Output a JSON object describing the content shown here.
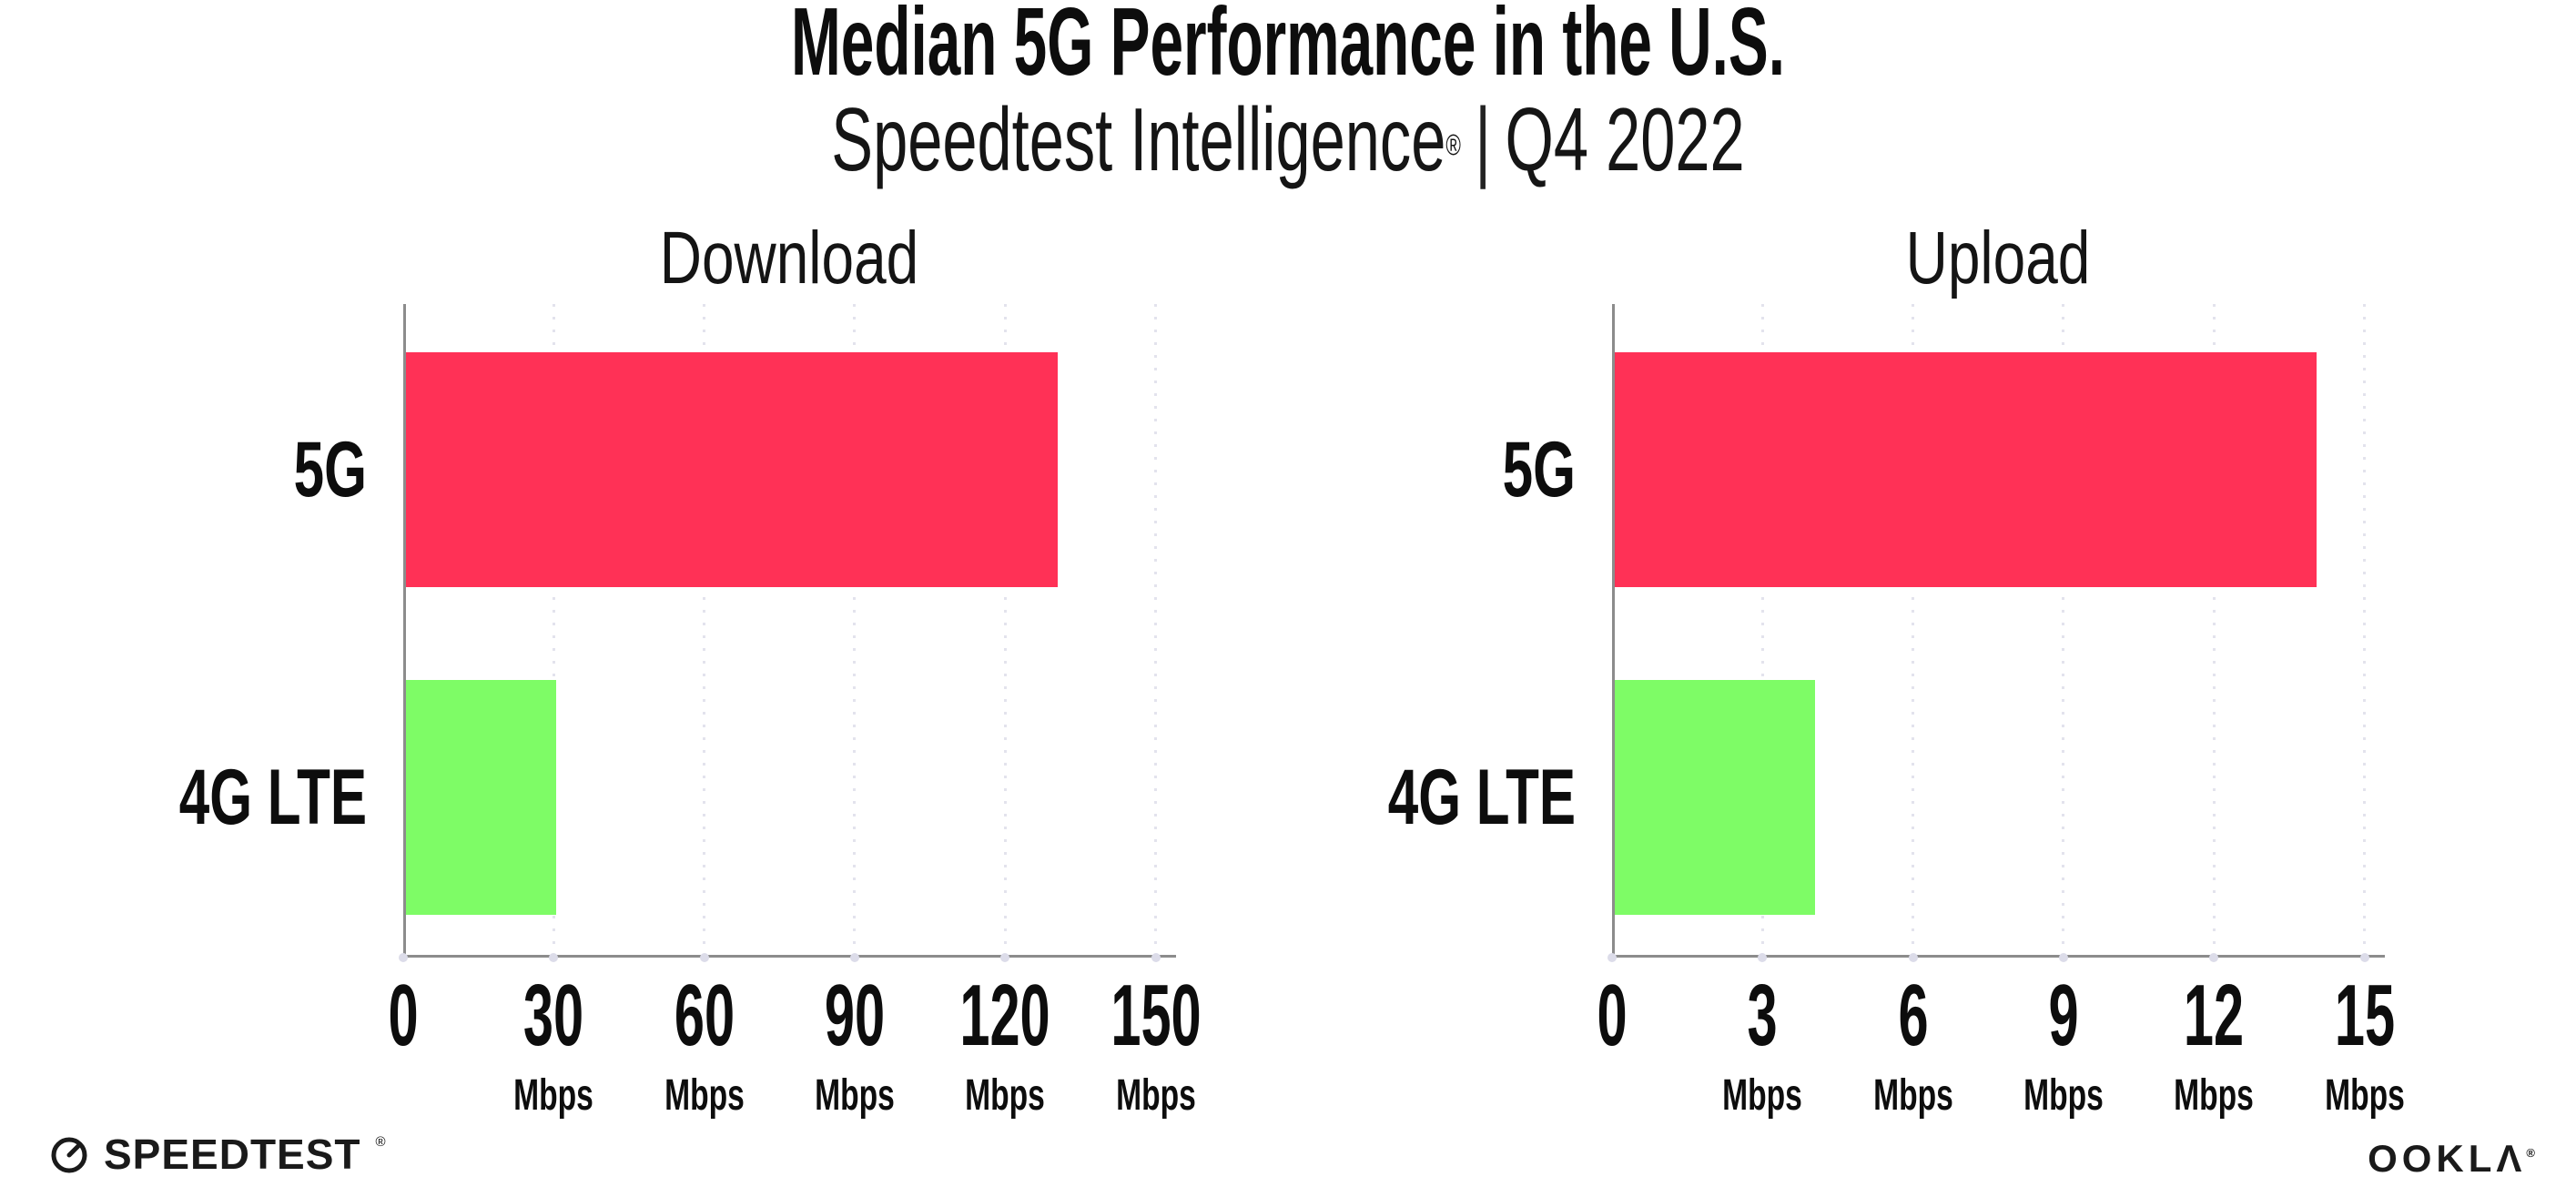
{
  "header": {
    "title": "Median 5G Performance in the U.S.",
    "subtitle_product": "Speedtest Intelligence",
    "subtitle_trademark": "®",
    "subtitle_separator": "|",
    "subtitle_period": "Q4 2022"
  },
  "chart_data": [
    {
      "type": "bar",
      "orientation": "horizontal",
      "title": "Download",
      "categories": [
        "5G",
        "4G LTE"
      ],
      "values": [
        130,
        30
      ],
      "unit": "Mbps",
      "xlim": [
        0,
        150
      ],
      "xticks": [
        0,
        30,
        60,
        90,
        120,
        150
      ],
      "grid": "vertical-dotted",
      "legend": "none",
      "bar_colors": [
        "#ff3156",
        "#7efc66"
      ]
    },
    {
      "type": "bar",
      "orientation": "horizontal",
      "title": "Upload",
      "categories": [
        "5G",
        "4G LTE"
      ],
      "values": [
        14,
        4
      ],
      "unit": "Mbps",
      "xlim": [
        0,
        15
      ],
      "xticks": [
        0,
        3,
        6,
        9,
        12,
        15
      ],
      "grid": "vertical-dotted",
      "legend": "none",
      "bar_colors": [
        "#ff3156",
        "#7efc66"
      ]
    }
  ],
  "footer": {
    "speedtest_label": "SPEEDTEST",
    "speedtest_trademark": "®",
    "ookla_label": "OOKLΛ",
    "ookla_trademark": "®"
  },
  "colors": {
    "bar_5g": "#ff3156",
    "bar_4g_lte": "#7efc66",
    "axis_line": "#8c8c8c",
    "gridline": "#e3e3ed",
    "tick_dot": "#dcdce9",
    "text": "#0d0d0d",
    "background": "#ffffff"
  }
}
